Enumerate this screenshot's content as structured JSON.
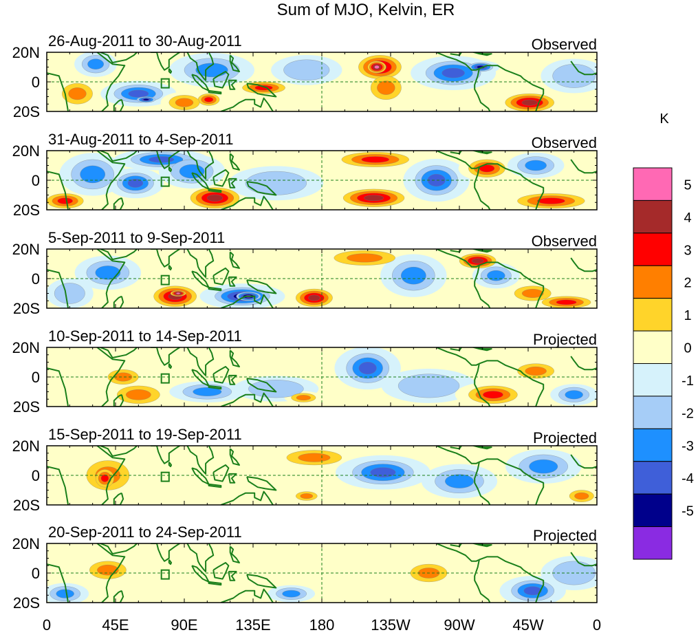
{
  "chart_data": {
    "type": "heatmap",
    "title": "Sum of MJO, Kelvin, ER",
    "units": "K",
    "x_tick_labels": [
      "0",
      "45E",
      "90E",
      "135E",
      "180",
      "135W",
      "90W",
      "45W",
      "0"
    ],
    "x_tick_lons": [
      0,
      45,
      90,
      135,
      180,
      225,
      270,
      315,
      360
    ],
    "y_tick_labels": [
      "20N",
      "0",
      "20S"
    ],
    "y_tick_lats": [
      20,
      0,
      -20
    ],
    "xlim": [
      0,
      360
    ],
    "ylim": [
      -20,
      20
    ],
    "colorbar": {
      "levels": [
        -5,
        -4,
        -3,
        -2,
        -1,
        0,
        1,
        2,
        3,
        4,
        5
      ],
      "level_labels": [
        "-5",
        "-4",
        "-3",
        "-2",
        "-1",
        "0",
        "1",
        "2",
        "3",
        "4",
        "5"
      ],
      "colors": [
        "#8a2be2",
        "#00008b",
        "#3f5fd9",
        "#1e90ff",
        "#a6cdf7",
        "#d6f2fb",
        "#ffffc8",
        "#ffd42a",
        "#ff7f00",
        "#ff0000",
        "#a52a2a",
        "#ff69b4"
      ]
    },
    "panels": [
      {
        "period": "26-Aug-2011 to 30-Aug-2011",
        "status": "Observed",
        "anomalies": [
          {
            "lon": 20,
            "lat": -8,
            "value": 2,
            "rx": 10,
            "ry": 7
          },
          {
            "lon": 32,
            "lat": 12,
            "value": -2,
            "rx": 9,
            "ry": 6
          },
          {
            "lon": 60,
            "lat": -8,
            "value": -3,
            "rx": 16,
            "ry": 6
          },
          {
            "lon": 65,
            "lat": -12,
            "value": -4,
            "rx": 6,
            "ry": 2
          },
          {
            "lon": 108,
            "lat": 8,
            "value": -2,
            "rx": 18,
            "ry": 8
          },
          {
            "lon": 106,
            "lat": -12,
            "value": 3,
            "rx": 7,
            "ry": 4
          },
          {
            "lon": 90,
            "lat": -14,
            "value": 2,
            "rx": 10,
            "ry": 5
          },
          {
            "lon": 142,
            "lat": -4,
            "value": 3,
            "rx": 14,
            "ry": 4
          },
          {
            "lon": 170,
            "lat": 8,
            "value": -1,
            "rx": 15,
            "ry": 7
          },
          {
            "lon": 218,
            "lat": 10,
            "value": 4,
            "rx": 14,
            "ry": 8
          },
          {
            "lon": 216,
            "lat": 10,
            "value": 5,
            "rx": 6,
            "ry": 4
          },
          {
            "lon": 222,
            "lat": -4,
            "value": 2,
            "rx": 10,
            "ry": 8
          },
          {
            "lon": 266,
            "lat": 6,
            "value": -3,
            "rx": 18,
            "ry": 8
          },
          {
            "lon": 284,
            "lat": 10,
            "value": -4,
            "rx": 8,
            "ry": 3
          },
          {
            "lon": 316,
            "lat": -14,
            "value": 4,
            "rx": 16,
            "ry": 6
          },
          {
            "lon": 345,
            "lat": 4,
            "value": -1,
            "rx": 14,
            "ry": 8
          }
        ]
      },
      {
        "period": "31-Aug-2011 to 4-Sep-2011",
        "status": "Observed",
        "anomalies": [
          {
            "lon": 12,
            "lat": -14,
            "value": 3,
            "rx": 12,
            "ry": 5
          },
          {
            "lon": 30,
            "lat": 4,
            "value": -2,
            "rx": 14,
            "ry": 10
          },
          {
            "lon": 58,
            "lat": -2,
            "value": -3,
            "rx": 12,
            "ry": 7
          },
          {
            "lon": 75,
            "lat": 14,
            "value": -3,
            "rx": 20,
            "ry": 5
          },
          {
            "lon": 110,
            "lat": -12,
            "value": 4,
            "rx": 16,
            "ry": 7
          },
          {
            "lon": 95,
            "lat": 6,
            "value": -2,
            "rx": 14,
            "ry": 8
          },
          {
            "lon": 150,
            "lat": -2,
            "value": -1,
            "rx": 20,
            "ry": 8
          },
          {
            "lon": 215,
            "lat": 14,
            "value": 3,
            "rx": 22,
            "ry": 5
          },
          {
            "lon": 214,
            "lat": -12,
            "value": 4,
            "rx": 20,
            "ry": 6
          },
          {
            "lon": 255,
            "lat": 0,
            "value": -3,
            "rx": 14,
            "ry": 10
          },
          {
            "lon": 288,
            "lat": 8,
            "value": 3,
            "rx": 12,
            "ry": 6
          },
          {
            "lon": 330,
            "lat": -14,
            "value": 3,
            "rx": 22,
            "ry": 5
          },
          {
            "lon": 320,
            "lat": 10,
            "value": -2,
            "rx": 12,
            "ry": 6
          }
        ]
      },
      {
        "period": "5-Sep-2011 to 9-Sep-2011",
        "status": "Observed",
        "anomalies": [
          {
            "lon": 40,
            "lat": 4,
            "value": -2,
            "rx": 14,
            "ry": 8
          },
          {
            "lon": 15,
            "lat": -10,
            "value": -1,
            "rx": 10,
            "ry": 7
          },
          {
            "lon": 84,
            "lat": -12,
            "value": 4,
            "rx": 14,
            "ry": 7
          },
          {
            "lon": 86,
            "lat": -10,
            "value": 5,
            "rx": 5,
            "ry": 2
          },
          {
            "lon": 128,
            "lat": -12,
            "value": -4,
            "rx": 18,
            "ry": 6
          },
          {
            "lon": 132,
            "lat": -12,
            "value": -5,
            "rx": 8,
            "ry": 3
          },
          {
            "lon": 175,
            "lat": -13,
            "value": 4,
            "rx": 12,
            "ry": 6
          },
          {
            "lon": 208,
            "lat": 14,
            "value": 2,
            "rx": 20,
            "ry": 5
          },
          {
            "lon": 240,
            "lat": 2,
            "value": -2,
            "rx": 14,
            "ry": 10
          },
          {
            "lon": 282,
            "lat": 12,
            "value": 4,
            "rx": 12,
            "ry": 5
          },
          {
            "lon": 294,
            "lat": 2,
            "value": -2,
            "rx": 10,
            "ry": 6
          },
          {
            "lon": 340,
            "lat": -16,
            "value": 3,
            "rx": 16,
            "ry": 4
          },
          {
            "lon": 318,
            "lat": -10,
            "value": 2,
            "rx": 12,
            "ry": 5
          }
        ]
      },
      {
        "period": "10-Sep-2011 to 14-Sep-2011",
        "status": "Projected",
        "anomalies": [
          {
            "lon": 50,
            "lat": 0,
            "value": 2,
            "rx": 10,
            "ry": 5
          },
          {
            "lon": 60,
            "lat": -12,
            "value": 2,
            "rx": 14,
            "ry": 6
          },
          {
            "lon": 105,
            "lat": -10,
            "value": -2,
            "rx": 16,
            "ry": 5
          },
          {
            "lon": 150,
            "lat": -8,
            "value": -1,
            "rx": 18,
            "ry": 6
          },
          {
            "lon": 168,
            "lat": -14,
            "value": 2,
            "rx": 8,
            "ry": 3
          },
          {
            "lon": 210,
            "lat": 6,
            "value": -3,
            "rx": 14,
            "ry": 10
          },
          {
            "lon": 250,
            "lat": -6,
            "value": -1,
            "rx": 20,
            "ry": 8
          },
          {
            "lon": 292,
            "lat": -12,
            "value": 3,
            "rx": 16,
            "ry": 6
          },
          {
            "lon": 320,
            "lat": 4,
            "value": 2,
            "rx": 12,
            "ry": 5
          },
          {
            "lon": 345,
            "lat": -12,
            "value": -2,
            "rx": 10,
            "ry": 5
          }
        ]
      },
      {
        "period": "15-Sep-2011 to 19-Sep-2011",
        "status": "Projected",
        "anomalies": [
          {
            "lon": 40,
            "lat": 0,
            "value": 2,
            "rx": 14,
            "ry": 10
          },
          {
            "lon": 38,
            "lat": -2,
            "value": 3,
            "rx": 6,
            "ry": 6
          },
          {
            "lon": 175,
            "lat": 12,
            "value": 2,
            "rx": 18,
            "ry": 5
          },
          {
            "lon": 170,
            "lat": -14,
            "value": 2,
            "rx": 7,
            "ry": 3
          },
          {
            "lon": 220,
            "lat": 2,
            "value": -3,
            "rx": 20,
            "ry": 8
          },
          {
            "lon": 270,
            "lat": -4,
            "value": -2,
            "rx": 16,
            "ry": 8
          },
          {
            "lon": 325,
            "lat": 6,
            "value": -2,
            "rx": 16,
            "ry": 8
          },
          {
            "lon": 350,
            "lat": -14,
            "value": 2,
            "rx": 8,
            "ry": 4
          }
        ]
      },
      {
        "period": "20-Sep-2011 to 24-Sep-2011",
        "status": "Projected",
        "anomalies": [
          {
            "lon": 40,
            "lat": 2,
            "value": 2,
            "rx": 12,
            "ry": 6
          },
          {
            "lon": 12,
            "lat": -14,
            "value": -2,
            "rx": 10,
            "ry": 5
          },
          {
            "lon": 160,
            "lat": -14,
            "value": -2,
            "rx": 10,
            "ry": 4
          },
          {
            "lon": 250,
            "lat": 0,
            "value": 2,
            "rx": 12,
            "ry": 6
          },
          {
            "lon": 318,
            "lat": -12,
            "value": -3,
            "rx": 14,
            "ry": 7
          },
          {
            "lon": 345,
            "lat": 0,
            "value": -1,
            "rx": 14,
            "ry": 8
          }
        ]
      }
    ]
  }
}
